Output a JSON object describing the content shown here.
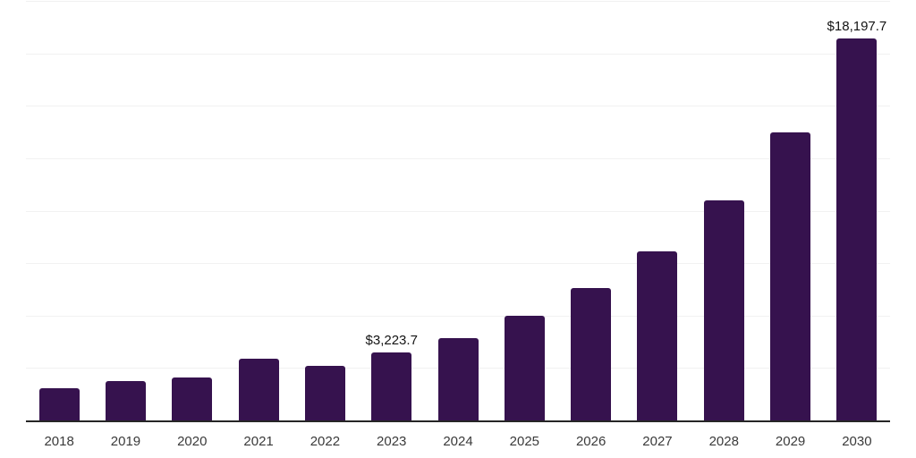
{
  "chart_data": {
    "type": "bar",
    "title": "",
    "xlabel": "",
    "ylabel": "",
    "categories": [
      "2018",
      "2019",
      "2020",
      "2021",
      "2022",
      "2023",
      "2024",
      "2025",
      "2026",
      "2027",
      "2028",
      "2029",
      "2030"
    ],
    "values": [
      1515,
      1870,
      2045,
      2940,
      2600,
      3223.7,
      3935,
      4975,
      6325,
      8060,
      10475,
      13715,
      18197.7
    ],
    "data_labels": [
      "",
      "",
      "",
      "",
      "",
      "$3,223.7",
      "",
      "",
      "",
      "",
      "",
      "",
      "$18,197.7"
    ],
    "ylim": [
      0,
      20000
    ],
    "gridline_step": 2500,
    "grid": "horizontal-only",
    "y_axis_labels_shown": false,
    "legend": "none",
    "colors": {
      "bar": "#36124E",
      "axis_line": "#262626",
      "gridline": "#f1f1f1",
      "tick_label": "#3a3a3a",
      "value_label": "#141414",
      "background": "#ffffff"
    }
  }
}
